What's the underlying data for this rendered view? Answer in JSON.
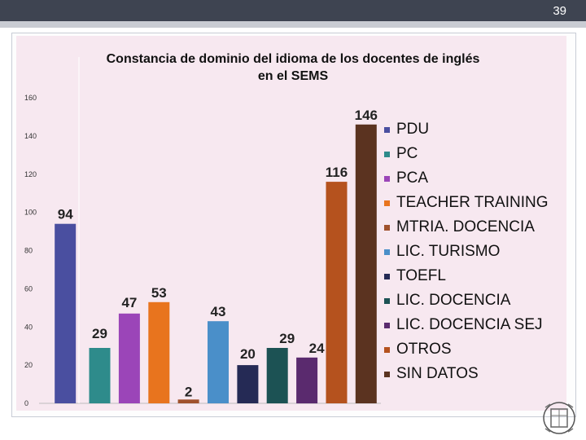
{
  "page": {
    "number": "39"
  },
  "chart_data": {
    "type": "bar",
    "title": "Constancia de dominio del idioma de los docentes de inglés en el SEMS",
    "title_lines": [
      "Constancia de dominio del idioma de los docentes de inglés",
      "en el SEMS"
    ],
    "xlabel": "",
    "ylabel": "",
    "ylim": [
      0,
      160
    ],
    "yticks": [
      0,
      20,
      40,
      60,
      80,
      100,
      120,
      140,
      160
    ],
    "grid": false,
    "legend_position": "right",
    "series": [
      {
        "name": "PDU",
        "value": 94,
        "color": "#4a4fa0"
      },
      {
        "name": "PC",
        "value": 29,
        "color": "#2e8b8b"
      },
      {
        "name": "PCA",
        "value": 47,
        "color": "#9b45b8"
      },
      {
        "name": "TEACHER TRAINING",
        "value": 53,
        "color": "#e8741e"
      },
      {
        "name": "MTRIA. DOCENCIA",
        "value": 2,
        "color": "#a0522d"
      },
      {
        "name": "LIC. TURISMO",
        "value": 43,
        "color": "#4a8fc9"
      },
      {
        "name": "TOEFL",
        "value": 20,
        "color": "#252a55"
      },
      {
        "name": "LIC. DOCENCIA",
        "value": 29,
        "color": "#1c5254"
      },
      {
        "name": "LIC. DOCENCIA SEJ",
        "value": 24,
        "color": "#5a2a6e"
      },
      {
        "name": "OTROS",
        "value": 116,
        "color": "#b5521e"
      },
      {
        "name": "SIN DATOS",
        "value": 146,
        "color": "#5b3320"
      }
    ]
  }
}
